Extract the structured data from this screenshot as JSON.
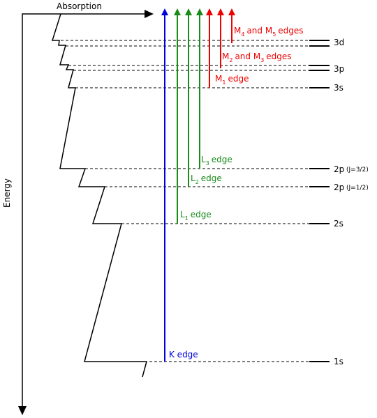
{
  "axes": {
    "absorption_label": "Absorption",
    "energy_label": "Energy"
  },
  "levels": [
    {
      "name": "3d",
      "suffix": ""
    },
    {
      "name": "3p",
      "suffix": ""
    },
    {
      "name": "3s",
      "suffix": ""
    },
    {
      "name": "2p",
      "suffix": "(J=3/2)"
    },
    {
      "name": "2p",
      "suffix": "(J=1/2)"
    },
    {
      "name": "2s",
      "suffix": ""
    },
    {
      "name": "1s",
      "suffix": ""
    }
  ],
  "edges": {
    "k": {
      "text": "K edge"
    },
    "l1": {
      "main": "L",
      "sub": "1",
      "rest": "edge"
    },
    "l2": {
      "main": "L",
      "sub": "2",
      "rest": "edge"
    },
    "l3": {
      "main": "L",
      "sub": "3",
      "rest": "edge"
    },
    "m1": {
      "main": "M",
      "sub": "1",
      "rest": "edge"
    },
    "m23": {
      "a": "M",
      "a_sub": "2",
      "mid": "and M",
      "b_sub": "3",
      "rest": "edges"
    },
    "m45": {
      "a": "M",
      "a_sub": "4",
      "mid": "and M",
      "b_sub": "5",
      "rest": "edges"
    }
  },
  "colors": {
    "k_edge": "#0000dd",
    "l_edges": "#1a8a1a",
    "m_edges": "#ee0000",
    "lines": "#000000"
  }
}
